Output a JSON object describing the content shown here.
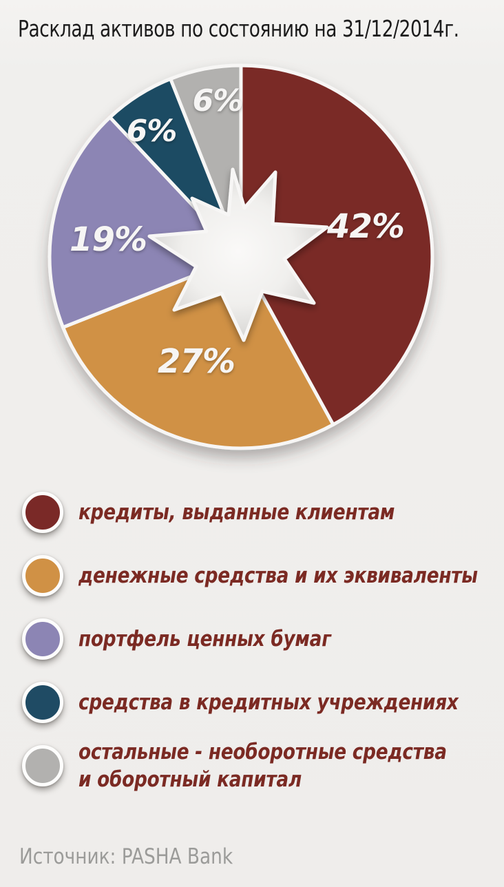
{
  "title": "Расклад активов по состоянию на 31/12/2014г.",
  "source": "Источник: PASHA Bank",
  "colors": {
    "background": "#f0efed",
    "title_text": "#1c1c1c",
    "legend_text": "#7b2a23",
    "source_text": "#9b9b99",
    "slice_border": "#f7f6f5",
    "label_text": "#f6f5f4"
  },
  "chart_data": {
    "type": "pie",
    "title": "Расклад активов по состоянию на 31/12/2014г.",
    "start_angle_deg": 0,
    "direction": "clockwise",
    "center_shape": "eight-point-star-cutout",
    "legend_position": "bottom",
    "categories": [
      "кредиты, выданные клиентам",
      "денежные средства и их эквиваленты",
      "портфель ценных бумаг",
      "средства в кредитных учреждениях",
      "остальные - необоротные средства и оборотный капитал"
    ],
    "values": [
      42,
      27,
      19,
      6,
      6
    ],
    "slices": [
      {
        "label": "кредиты, выданные клиентам",
        "value": 42,
        "display": "42%",
        "color": "#7a2927"
      },
      {
        "label": "денежные средства и их эквиваленты",
        "value": 27,
        "display": "27%",
        "color": "#d09145"
      },
      {
        "label": "портфель ценных бумаг",
        "value": 19,
        "display": "19%",
        "color": "#8c85b4"
      },
      {
        "label": "средства в кредитных учреждениях",
        "value": 6,
        "display": "6%",
        "color": "#1f4b64"
      },
      {
        "label": "остальные - необоротные средства и оборотный капитал",
        "value": 6,
        "display": "6%",
        "color": "#b2b1af"
      }
    ]
  },
  "legend": {
    "items": [
      {
        "lines": [
          "кредиты, выданные клиентам"
        ]
      },
      {
        "lines": [
          "денежные средства и их эквиваленты"
        ]
      },
      {
        "lines": [
          "портфель ценных бумаг"
        ]
      },
      {
        "lines": [
          "средства в кредитных учреждениях"
        ]
      },
      {
        "lines": [
          "остальные - необоротные средства",
          "и оборотный капитал"
        ]
      }
    ]
  }
}
